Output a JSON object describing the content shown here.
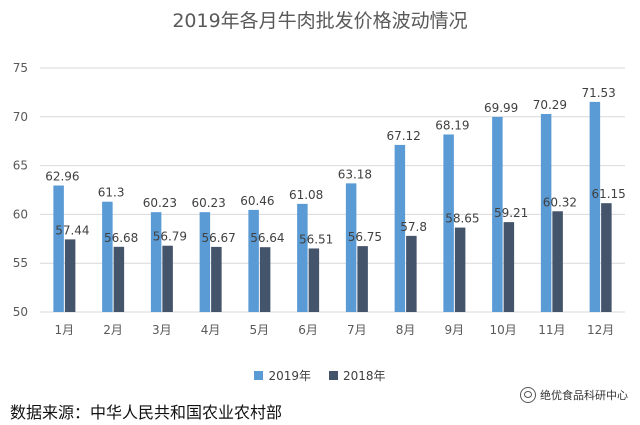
{
  "chart_data": {
    "type": "bar",
    "title": "2019年各月牛肉批发价格波动情况",
    "categories": [
      "1月",
      "2月",
      "3月",
      "4月",
      "5月",
      "6月",
      "7月",
      "8月",
      "9月",
      "10月",
      "11月",
      "12月"
    ],
    "series": [
      {
        "name": "2019年",
        "color": "#5b9bd5",
        "values": [
          62.96,
          61.3,
          60.23,
          60.23,
          60.46,
          61.08,
          63.18,
          67.12,
          68.19,
          69.99,
          70.29,
          71.53
        ],
        "labels": [
          "62.96",
          "61.3",
          "60.23",
          "60.23",
          "60.46",
          "61.08",
          "63.18",
          "67.12",
          "68.19",
          "69.99",
          "70.29",
          "71.53"
        ]
      },
      {
        "name": "2018年",
        "color": "#44546a",
        "values": [
          57.44,
          56.68,
          56.79,
          56.67,
          56.64,
          56.51,
          56.75,
          57.8,
          58.65,
          59.21,
          60.32,
          61.15
        ],
        "labels": [
          "57.44",
          "56.68",
          "56.79",
          "56.67",
          "56.64",
          "56.51",
          "56.75",
          "57.8",
          "58.65",
          "59.21",
          "60.32",
          "61.15"
        ]
      }
    ],
    "y_ticks": [
      "50",
      "55",
      "60",
      "65",
      "70",
      "75"
    ],
    "ylim": [
      50,
      75
    ],
    "xlabel": "",
    "ylabel": "",
    "grid": true,
    "legend_position": "bottom"
  },
  "footer": {
    "source": "数据来源：中华人民共和国农业农村部",
    "brand": "绝优食品科研中心"
  },
  "watermark": {
    "text": "绝优"
  }
}
